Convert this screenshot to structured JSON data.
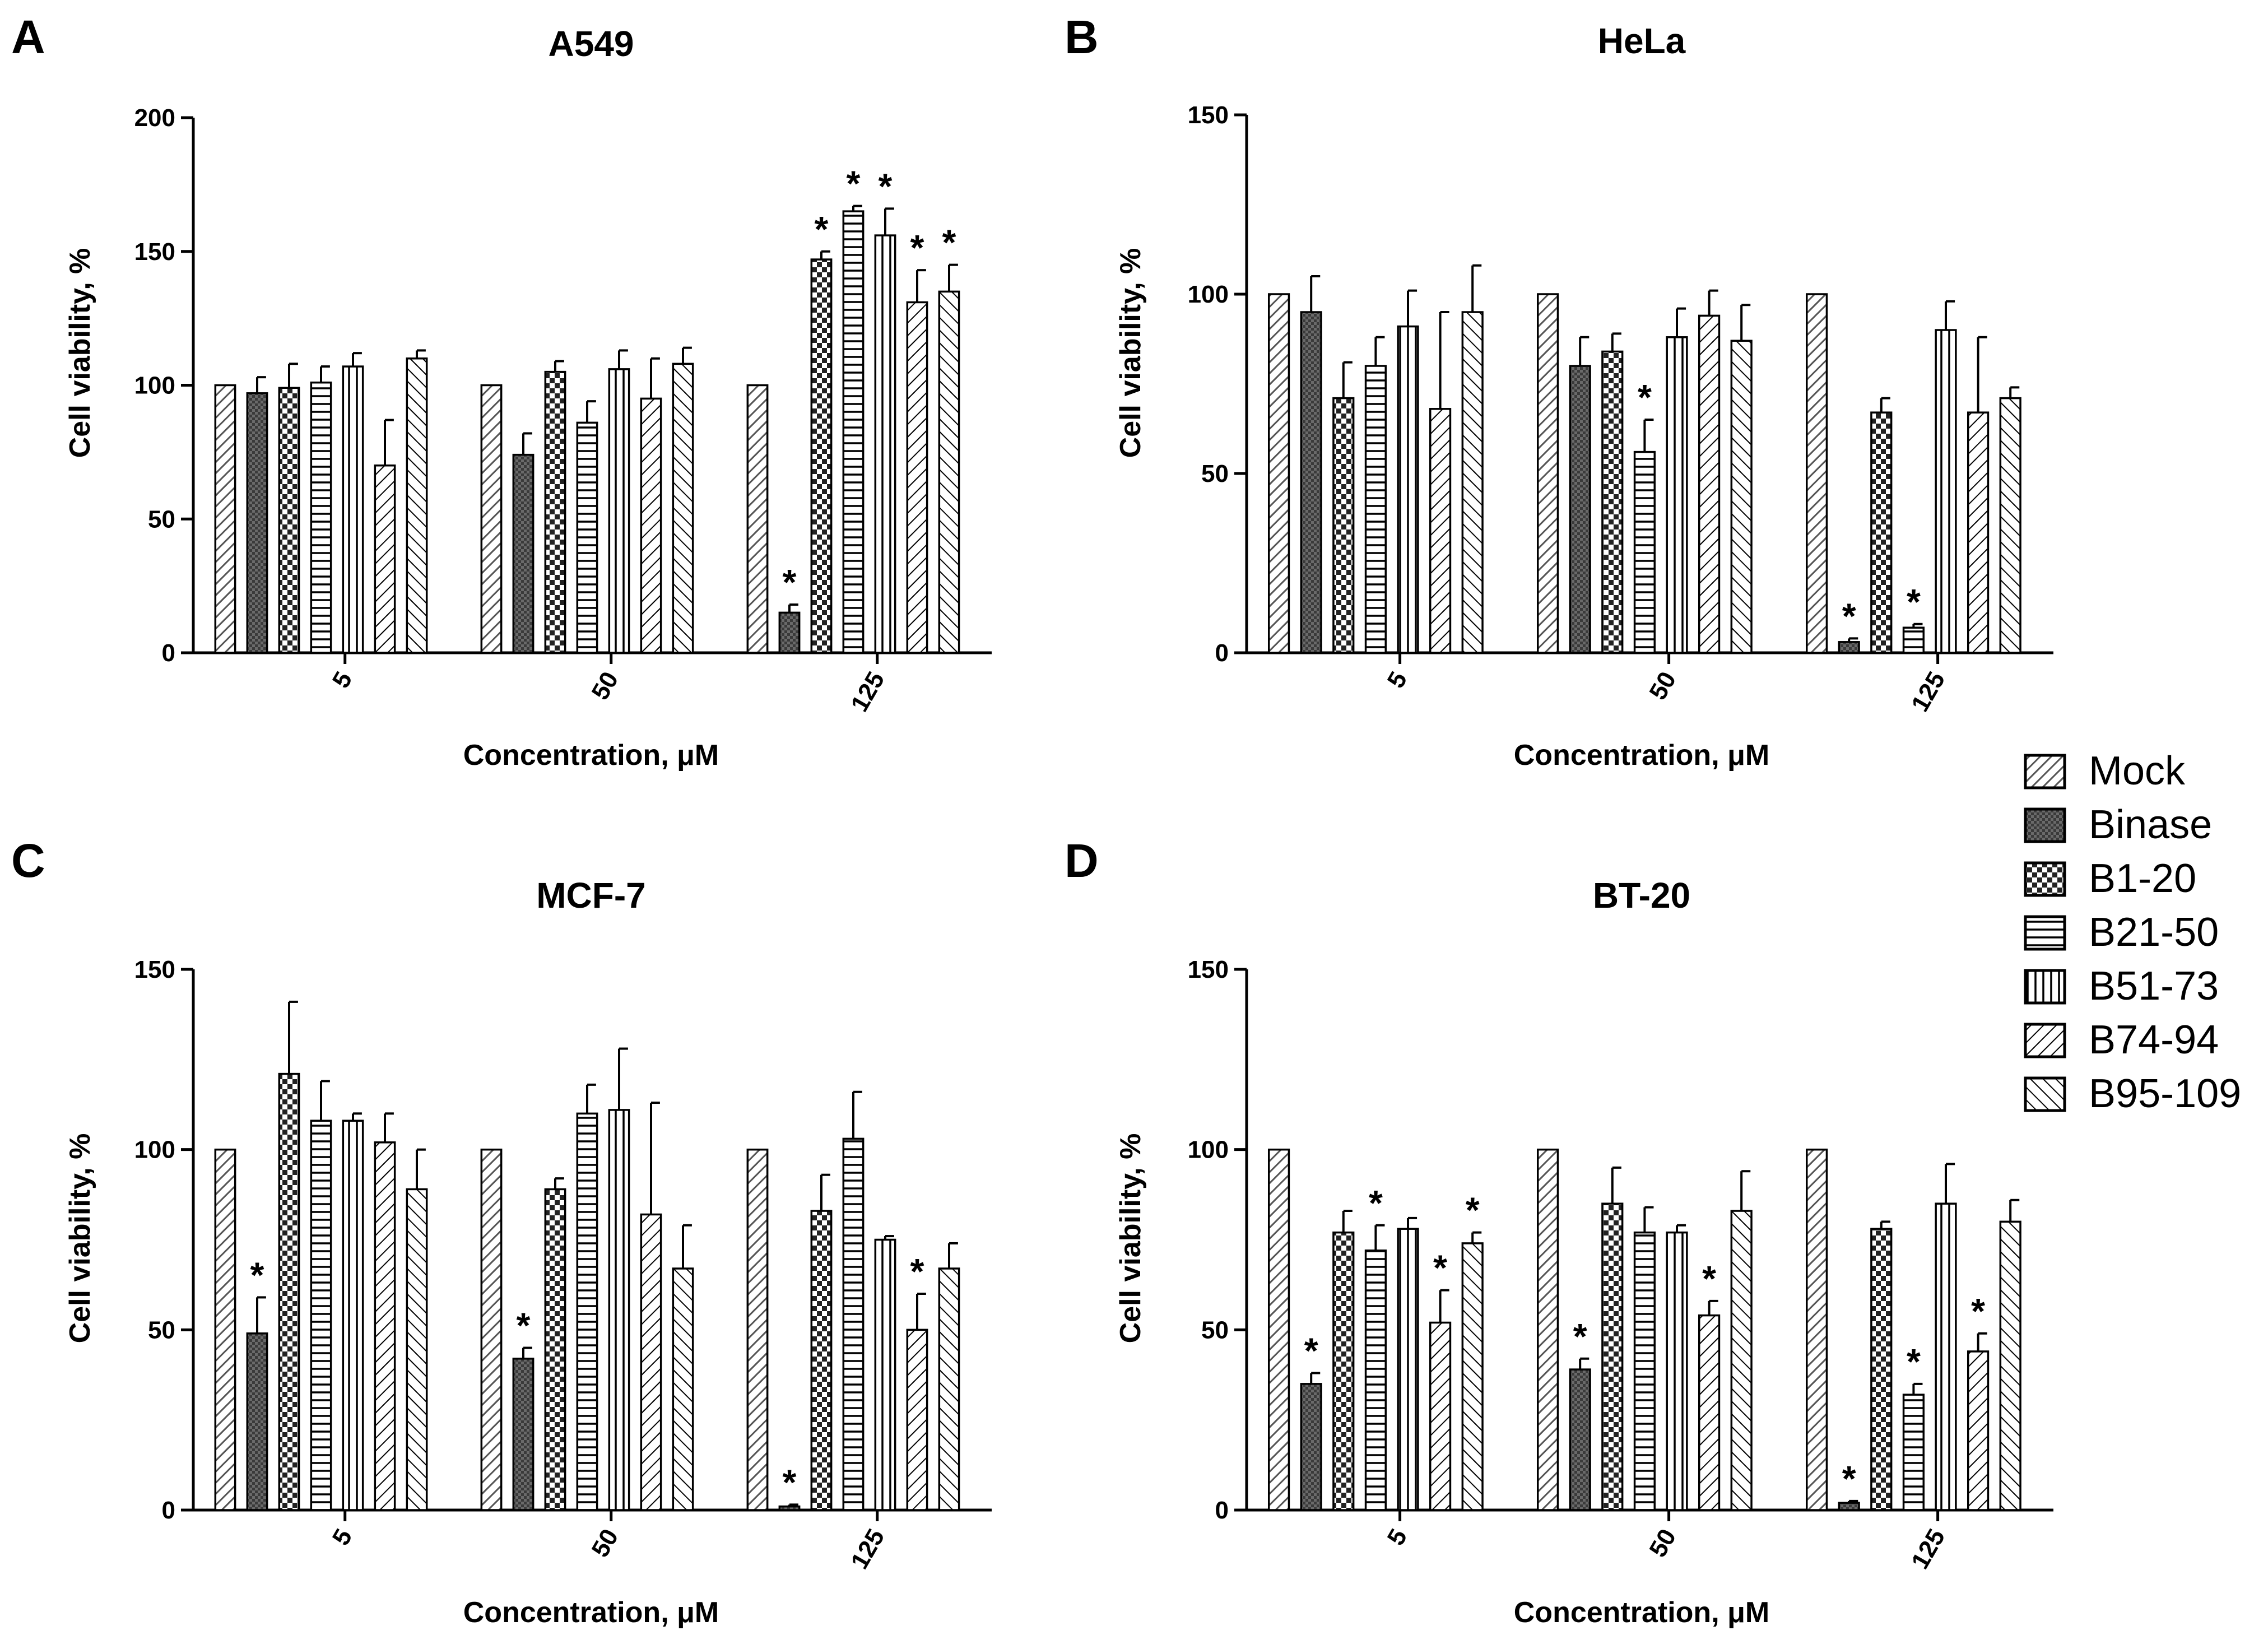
{
  "chart_data": [
    {
      "panel": "A",
      "type": "bar",
      "title": "A549",
      "xlabel": "Concentration, μM",
      "ylabel": "Cell viability, %",
      "ylim": [
        0,
        200
      ],
      "yticks": [
        "0",
        "50",
        "100",
        "150",
        "200"
      ],
      "categories": [
        "5",
        "50",
        "125"
      ],
      "series": [
        {
          "name": "Mock",
          "values": [
            100,
            100,
            100
          ],
          "errors": [
            0,
            0,
            0
          ],
          "sig": [
            false,
            false,
            false
          ]
        },
        {
          "name": "Binase",
          "values": [
            97,
            74,
            15
          ],
          "errors": [
            6,
            8,
            3
          ],
          "sig": [
            false,
            false,
            true
          ]
        },
        {
          "name": "B1-20",
          "values": [
            99,
            105,
            147
          ],
          "errors": [
            9,
            4,
            3
          ],
          "sig": [
            false,
            false,
            true
          ]
        },
        {
          "name": "B21-50",
          "values": [
            101,
            86,
            165
          ],
          "errors": [
            6,
            8,
            2
          ],
          "sig": [
            false,
            false,
            true
          ]
        },
        {
          "name": "B51-73",
          "values": [
            107,
            106,
            156
          ],
          "errors": [
            5,
            7,
            10
          ],
          "sig": [
            false,
            false,
            true
          ]
        },
        {
          "name": "B74-94",
          "values": [
            70,
            95,
            131
          ],
          "errors": [
            17,
            15,
            12
          ],
          "sig": [
            false,
            false,
            true
          ]
        },
        {
          "name": "B95-109",
          "values": [
            110,
            108,
            135
          ],
          "errors": [
            3,
            6,
            10
          ],
          "sig": [
            false,
            false,
            true
          ]
        }
      ]
    },
    {
      "panel": "B",
      "type": "bar",
      "title": "HeLa",
      "xlabel": "Concentration, μM",
      "ylabel": "Cell viability, %",
      "ylim": [
        0,
        150
      ],
      "yticks": [
        "0",
        "50",
        "100",
        "150"
      ],
      "categories": [
        "5",
        "50",
        "125"
      ],
      "series": [
        {
          "name": "Mock",
          "values": [
            100,
            100,
            100
          ],
          "errors": [
            0,
            0,
            0
          ],
          "sig": [
            false,
            false,
            false
          ]
        },
        {
          "name": "Binase",
          "values": [
            95,
            80,
            3
          ],
          "errors": [
            10,
            8,
            1
          ],
          "sig": [
            false,
            false,
            true
          ]
        },
        {
          "name": "B1-20",
          "values": [
            71,
            84,
            67
          ],
          "errors": [
            10,
            5,
            4
          ],
          "sig": [
            false,
            false,
            false
          ]
        },
        {
          "name": "B21-50",
          "values": [
            80,
            56,
            7
          ],
          "errors": [
            8,
            9,
            1
          ],
          "sig": [
            false,
            true,
            true
          ]
        },
        {
          "name": "B51-73",
          "values": [
            91,
            88,
            90
          ],
          "errors": [
            10,
            8,
            8
          ],
          "sig": [
            false,
            false,
            false
          ]
        },
        {
          "name": "B74-94",
          "values": [
            68,
            94,
            67
          ],
          "errors": [
            27,
            7,
            21
          ],
          "sig": [
            false,
            false,
            false
          ]
        },
        {
          "name": "B95-109",
          "values": [
            95,
            87,
            71
          ],
          "errors": [
            13,
            10,
            3
          ],
          "sig": [
            false,
            false,
            false
          ]
        }
      ]
    },
    {
      "panel": "C",
      "type": "bar",
      "title": "MCF-7",
      "xlabel": "Concentration, μM",
      "ylabel": "Cell viability, %",
      "ylim": [
        0,
        150
      ],
      "yticks": [
        "0",
        "50",
        "100",
        "150"
      ],
      "categories": [
        "5",
        "50",
        "125"
      ],
      "series": [
        {
          "name": "Mock",
          "values": [
            100,
            100,
            100
          ],
          "errors": [
            0,
            0,
            0
          ],
          "sig": [
            false,
            false,
            false
          ]
        },
        {
          "name": "Binase",
          "values": [
            49,
            42,
            1
          ],
          "errors": [
            10,
            3,
            0.5
          ],
          "sig": [
            true,
            true,
            true
          ]
        },
        {
          "name": "B1-20",
          "values": [
            121,
            89,
            83
          ],
          "errors": [
            20,
            3,
            10
          ],
          "sig": [
            false,
            false,
            false
          ]
        },
        {
          "name": "B21-50",
          "values": [
            108,
            110,
            103
          ],
          "errors": [
            11,
            8,
            13
          ],
          "sig": [
            false,
            false,
            false
          ]
        },
        {
          "name": "B51-73",
          "values": [
            108,
            111,
            75
          ],
          "errors": [
            2,
            17,
            1
          ],
          "sig": [
            false,
            false,
            false
          ]
        },
        {
          "name": "B74-94",
          "values": [
            102,
            82,
            50
          ],
          "errors": [
            8,
            31,
            10
          ],
          "sig": [
            false,
            false,
            true
          ]
        },
        {
          "name": "B95-109",
          "values": [
            89,
            67,
            67
          ],
          "errors": [
            11,
            12,
            7
          ],
          "sig": [
            false,
            false,
            false
          ]
        }
      ]
    },
    {
      "panel": "D",
      "type": "bar",
      "title": "BT-20",
      "xlabel": "Concentration, μM",
      "ylabel": "Cell viability, %",
      "ylim": [
        0,
        150
      ],
      "yticks": [
        "0",
        "50",
        "100",
        "150"
      ],
      "categories": [
        "5",
        "50",
        "125"
      ],
      "series": [
        {
          "name": "Mock",
          "values": [
            100,
            100,
            100
          ],
          "errors": [
            0,
            0,
            0
          ],
          "sig": [
            false,
            false,
            false
          ]
        },
        {
          "name": "Binase",
          "values": [
            35,
            39,
            2
          ],
          "errors": [
            3,
            3,
            0.5
          ],
          "sig": [
            true,
            true,
            true
          ]
        },
        {
          "name": "B1-20",
          "values": [
            77,
            85,
            78
          ],
          "errors": [
            6,
            10,
            2
          ],
          "sig": [
            false,
            false,
            false
          ]
        },
        {
          "name": "B21-50",
          "values": [
            72,
            77,
            32
          ],
          "errors": [
            7,
            7,
            3
          ],
          "sig": [
            true,
            false,
            true
          ]
        },
        {
          "name": "B51-73",
          "values": [
            78,
            77,
            85
          ],
          "errors": [
            3,
            2,
            11
          ],
          "sig": [
            false,
            false,
            false
          ]
        },
        {
          "name": "B74-94",
          "values": [
            52,
            54,
            44
          ],
          "errors": [
            9,
            4,
            5
          ],
          "sig": [
            true,
            true,
            true
          ]
        },
        {
          "name": "B95-109",
          "values": [
            74,
            83,
            80
          ],
          "errors": [
            3,
            11,
            6
          ],
          "sig": [
            true,
            false,
            false
          ]
        }
      ]
    }
  ],
  "legend": {
    "title": "",
    "items": [
      "Mock",
      "Binase",
      "B1-20",
      "B21-50",
      "B51-73",
      "B74-94",
      "B95-109"
    ]
  },
  "significance_marker": "*"
}
